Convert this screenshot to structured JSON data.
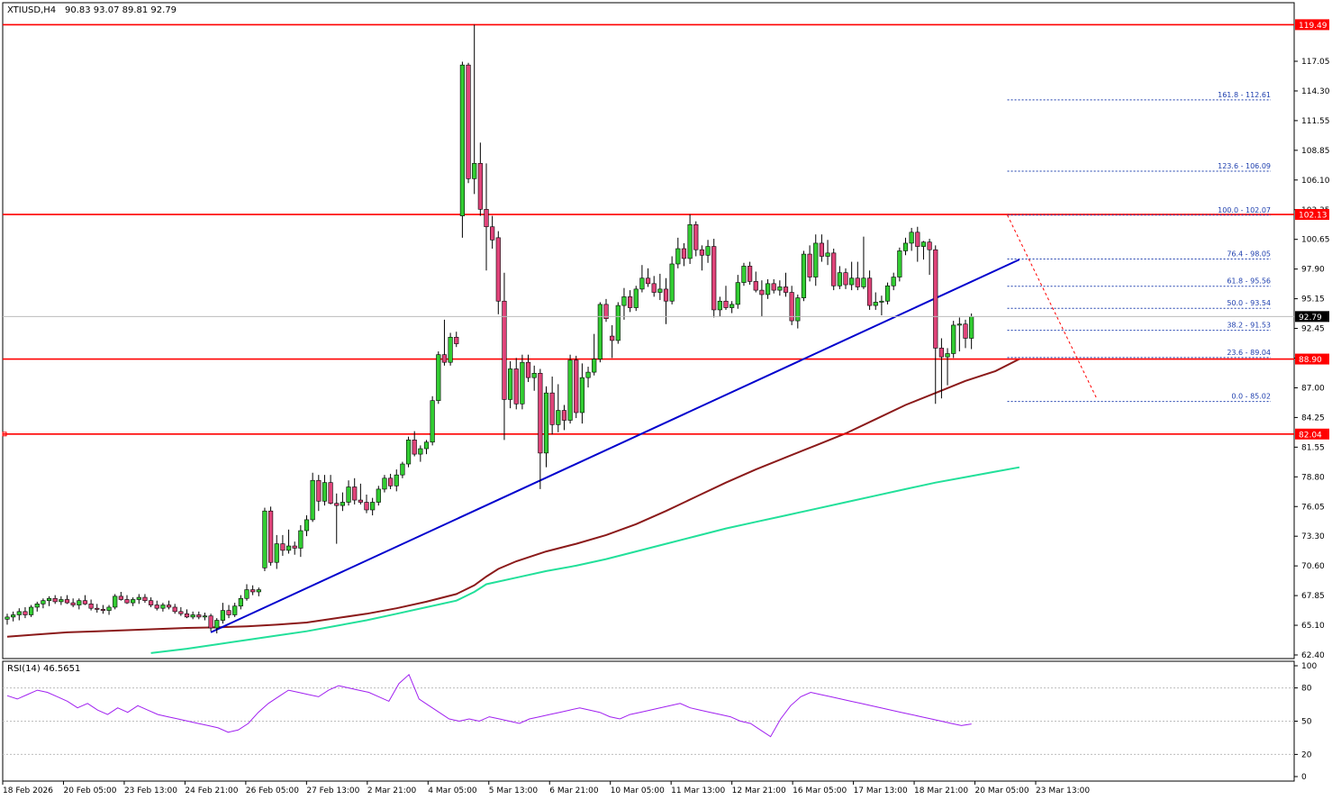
{
  "header": {
    "symbol": "XTIUSD,H4",
    "ohlc": "90.83 93.07 89.81 92.79"
  },
  "colors": {
    "bull": "#32cd32",
    "bear": "#e0447a",
    "level": "#ff0000",
    "trend": "#0000cd",
    "ma_slow": "#8b1a1a",
    "ma_fast": "#22e09a",
    "fib": "#1e3fae",
    "rsi": "#a020f0",
    "axis": "#000000",
    "current": "#000000"
  },
  "chart_data": {
    "type": "candlestick",
    "ylim": [
      61.5,
      121.5
    ],
    "y_ticks": [
      "117.05",
      "114.30",
      "111.55",
      "108.85",
      "106.10",
      "103.35",
      "100.65",
      "97.90",
      "95.15",
      "92.45",
      "89.70",
      "87.00",
      "84.25",
      "81.55",
      "78.80",
      "76.05",
      "73.30",
      "70.60",
      "67.85",
      "65.10",
      "62.40"
    ],
    "x_labels": [
      "18 Feb 2026",
      "20 Feb 05:00",
      "23 Feb 13:00",
      "24 Feb 21:00",
      "26 Feb 05:00",
      "27 Feb 13:00",
      "2 Mar 21:00",
      "4 Mar 05:00",
      "5 Mar 13:00",
      "6 Mar 21:00",
      "10 Mar 05:00",
      "11 Mar 13:00",
      "12 Mar 21:00",
      "16 Mar 05:00",
      "17 Mar 13:00",
      "18 Mar 21:00",
      "20 Mar 05:00",
      "23 Mar 13:00"
    ],
    "levels": [
      {
        "label": "119.49",
        "value": 119.49
      },
      {
        "label": "102.13",
        "value": 102.13
      },
      {
        "label": "88.90",
        "value": 88.9
      },
      {
        "label": "82.04",
        "value": 82.04
      }
    ],
    "current_price": {
      "label": "92.79",
      "value": 92.79
    },
    "fibonacci": [
      {
        "label": "161.8 - 112.61",
        "value": 112.61
      },
      {
        "label": "123.6 - 106.09",
        "value": 106.09
      },
      {
        "label": "100.0 - 102.07",
        "value": 102.07
      },
      {
        "label": "76.4 - 98.05",
        "value": 98.05
      },
      {
        "label": "61.8 - 95.56",
        "value": 95.56
      },
      {
        "label": "50.0 - 93.54",
        "value": 93.54
      },
      {
        "label": "38.2 - 91.53",
        "value": 91.53
      },
      {
        "label": "23.6 - 89.04",
        "value": 89.04
      },
      {
        "label": "0.0 - 85.02",
        "value": 85.02
      }
    ],
    "candles": [
      [
        65.1,
        65.6,
        64.6,
        65.3
      ],
      [
        65.3,
        65.8,
        64.9,
        65.5
      ],
      [
        65.5,
        66.1,
        65.0,
        65.8
      ],
      [
        65.8,
        66.2,
        65.2,
        65.5
      ],
      [
        65.5,
        66.4,
        65.3,
        66.2
      ],
      [
        66.2,
        66.7,
        65.8,
        66.5
      ],
      [
        66.5,
        67.0,
        66.1,
        66.8
      ],
      [
        66.8,
        67.2,
        66.3,
        67.0
      ],
      [
        67.0,
        67.3,
        66.5,
        66.7
      ],
      [
        66.7,
        67.2,
        66.4,
        66.9
      ],
      [
        66.9,
        67.3,
        66.5,
        66.6
      ],
      [
        66.6,
        67.0,
        66.2,
        66.4
      ],
      [
        66.4,
        67.0,
        66.0,
        66.8
      ],
      [
        66.8,
        67.3,
        66.4,
        66.5
      ],
      [
        66.5,
        66.9,
        65.9,
        66.1
      ],
      [
        66.1,
        66.5,
        65.7,
        66.0
      ],
      [
        66.0,
        66.4,
        65.6,
        65.9
      ],
      [
        65.9,
        66.4,
        65.5,
        66.2
      ],
      [
        66.2,
        67.4,
        66.0,
        67.2
      ],
      [
        67.2,
        67.6,
        66.8,
        66.9
      ],
      [
        66.9,
        67.3,
        66.5,
        66.6
      ],
      [
        66.6,
        67.1,
        66.3,
        66.9
      ],
      [
        66.9,
        67.4,
        66.5,
        67.1
      ],
      [
        67.1,
        67.4,
        66.6,
        66.8
      ],
      [
        66.8,
        67.1,
        66.2,
        66.4
      ],
      [
        66.4,
        66.8,
        65.9,
        66.1
      ],
      [
        66.1,
        66.6,
        65.8,
        66.4
      ],
      [
        66.4,
        66.8,
        66.0,
        66.2
      ],
      [
        66.2,
        66.5,
        65.6,
        65.8
      ],
      [
        65.8,
        66.2,
        65.4,
        65.6
      ],
      [
        65.6,
        66.0,
        65.2,
        65.3
      ],
      [
        65.3,
        65.8,
        65.1,
        65.5
      ],
      [
        65.5,
        65.8,
        65.1,
        65.3
      ],
      [
        65.3,
        65.7,
        65.0,
        65.4
      ],
      [
        65.4,
        65.6,
        64.0,
        64.3
      ],
      [
        64.3,
        65.2,
        63.8,
        65.0
      ],
      [
        65.0,
        66.6,
        64.7,
        65.9
      ],
      [
        65.9,
        66.4,
        65.2,
        65.5
      ],
      [
        65.5,
        66.6,
        65.3,
        66.3
      ],
      [
        66.3,
        67.3,
        66.0,
        67.0
      ],
      [
        67.0,
        68.3,
        66.8,
        67.8
      ],
      [
        67.8,
        68.2,
        67.3,
        67.6
      ],
      [
        67.6,
        68.0,
        67.2,
        67.8
      ],
      [
        69.8,
        75.3,
        69.5,
        75.0
      ],
      [
        75.0,
        75.4,
        70.0,
        70.3
      ],
      [
        70.3,
        72.8,
        69.7,
        72.0
      ],
      [
        72.0,
        72.8,
        70.9,
        71.4
      ],
      [
        71.4,
        73.3,
        71.1,
        71.8
      ],
      [
        71.8,
        72.2,
        71.0,
        71.6
      ],
      [
        71.6,
        73.7,
        70.8,
        73.2
      ],
      [
        73.2,
        74.6,
        72.7,
        74.2
      ],
      [
        74.2,
        78.5,
        74.0,
        77.8
      ],
      [
        77.8,
        78.3,
        75.0,
        75.9
      ],
      [
        75.9,
        78.3,
        75.5,
        77.6
      ],
      [
        77.6,
        78.3,
        75.6,
        75.7
      ],
      [
        75.7,
        76.6,
        72.0,
        75.5
      ],
      [
        75.5,
        76.7,
        75.0,
        75.8
      ],
      [
        75.8,
        77.8,
        75.5,
        77.2
      ],
      [
        77.2,
        78.0,
        75.6,
        76.0
      ],
      [
        76.0,
        77.5,
        75.6,
        75.8
      ],
      [
        75.8,
        76.5,
        74.8,
        75.1
      ],
      [
        75.1,
        76.2,
        74.6,
        75.8
      ],
      [
        75.8,
        77.3,
        75.5,
        77.0
      ],
      [
        77.0,
        78.3,
        76.7,
        78.0
      ],
      [
        78.0,
        78.4,
        77.0,
        77.3
      ],
      [
        77.3,
        78.8,
        76.8,
        78.3
      ],
      [
        78.3,
        79.5,
        78.0,
        79.3
      ],
      [
        79.3,
        81.8,
        79.0,
        81.5
      ],
      [
        81.5,
        82.3,
        80.0,
        80.2
      ],
      [
        80.2,
        81.0,
        79.5,
        80.7
      ],
      [
        80.7,
        81.5,
        80.2,
        81.3
      ],
      [
        81.3,
        85.5,
        81.0,
        85.1
      ],
      [
        85.1,
        89.6,
        84.8,
        89.3
      ],
      [
        89.3,
        92.5,
        88.3,
        88.6
      ],
      [
        88.6,
        91.3,
        88.3,
        90.9
      ],
      [
        90.9,
        91.4,
        90.0,
        90.3
      ],
      [
        102.0,
        116.1,
        100.0,
        115.8
      ],
      [
        115.8,
        116.0,
        105.0,
        105.4
      ],
      [
        105.4,
        119.49,
        104.0,
        106.8
      ],
      [
        106.8,
        108.7,
        102.0,
        102.6
      ],
      [
        102.6,
        106.8,
        97.0,
        101.0
      ],
      [
        101.0,
        102.0,
        99.0,
        99.8
      ],
      [
        100.0,
        100.6,
        93.0,
        94.2
      ],
      [
        94.2,
        96.8,
        81.5,
        85.2
      ],
      [
        85.2,
        88.7,
        84.4,
        88.0
      ],
      [
        88.0,
        89.0,
        84.3,
        84.8
      ],
      [
        84.8,
        89.3,
        84.3,
        88.6
      ],
      [
        88.6,
        89.3,
        86.8,
        87.2
      ],
      [
        87.2,
        88.3,
        86.0,
        87.6
      ],
      [
        87.6,
        88.0,
        77.0,
        80.3
      ],
      [
        80.3,
        86.4,
        79.0,
        85.8
      ],
      [
        85.8,
        87.3,
        82.0,
        82.9
      ],
      [
        82.9,
        86.6,
        82.2,
        84.2
      ],
      [
        84.2,
        84.7,
        82.4,
        83.3
      ],
      [
        83.3,
        89.3,
        83.0,
        88.8
      ],
      [
        88.8,
        89.2,
        83.5,
        84.0
      ],
      [
        84.0,
        88.5,
        83.0,
        87.2
      ],
      [
        87.2,
        88.2,
        86.3,
        87.7
      ],
      [
        87.7,
        91.2,
        87.4,
        88.9
      ],
      [
        88.9,
        94.1,
        88.6,
        93.9
      ],
      [
        93.9,
        94.4,
        92.3,
        92.6
      ],
      [
        91.0,
        92.0,
        89.0,
        90.6
      ],
      [
        90.6,
        94.1,
        90.3,
        93.8
      ],
      [
        93.8,
        95.4,
        92.5,
        94.6
      ],
      [
        94.6,
        95.2,
        93.2,
        93.6
      ],
      [
        93.6,
        95.6,
        93.3,
        95.3
      ],
      [
        95.3,
        97.5,
        95.0,
        96.3
      ],
      [
        96.3,
        97.2,
        95.5,
        95.8
      ],
      [
        95.8,
        96.5,
        94.6,
        95.0
      ],
      [
        95.0,
        96.7,
        94.3,
        95.3
      ],
      [
        95.3,
        96.3,
        92.1,
        94.2
      ],
      [
        94.2,
        98.3,
        93.9,
        97.6
      ],
      [
        97.6,
        100.0,
        97.2,
        99.0
      ],
      [
        99.0,
        99.5,
        97.4,
        98.1
      ],
      [
        98.1,
        102.13,
        97.6,
        101.2
      ],
      [
        101.2,
        101.5,
        98.3,
        98.9
      ],
      [
        98.9,
        99.3,
        97.0,
        98.4
      ],
      [
        98.4,
        99.8,
        97.7,
        99.2
      ],
      [
        99.2,
        99.9,
        92.7,
        93.4
      ],
      [
        93.4,
        94.6,
        92.8,
        94.2
      ],
      [
        94.2,
        95.6,
        93.4,
        93.6
      ],
      [
        93.6,
        94.2,
        93.1,
        93.9
      ],
      [
        93.9,
        96.6,
        93.5,
        95.9
      ],
      [
        95.9,
        97.7,
        95.6,
        97.4
      ],
      [
        97.4,
        97.8,
        95.7,
        96.0
      ],
      [
        96.0,
        96.9,
        95.0,
        95.2
      ],
      [
        95.2,
        96.1,
        92.8,
        94.8
      ],
      [
        94.8,
        96.2,
        94.4,
        95.8
      ],
      [
        95.8,
        96.2,
        94.9,
        95.2
      ],
      [
        95.2,
        96.1,
        94.7,
        95.5
      ],
      [
        95.5,
        96.8,
        94.6,
        95.0
      ],
      [
        95.0,
        95.6,
        92.0,
        92.4
      ],
      [
        92.4,
        94.8,
        91.7,
        94.5
      ],
      [
        94.5,
        98.8,
        94.2,
        98.5
      ],
      [
        98.5,
        99.3,
        96.0,
        96.4
      ],
      [
        96.4,
        100.3,
        95.6,
        99.5
      ],
      [
        99.5,
        100.3,
        97.8,
        98.3
      ],
      [
        98.3,
        99.8,
        97.5,
        98.6
      ],
      [
        98.6,
        99.0,
        95.2,
        95.6
      ],
      [
        95.6,
        97.4,
        95.3,
        96.8
      ],
      [
        96.8,
        97.2,
        95.3,
        95.7
      ],
      [
        95.7,
        97.8,
        95.2,
        96.3
      ],
      [
        96.3,
        97.8,
        95.2,
        95.5
      ],
      [
        95.5,
        100.1,
        95.3,
        96.3
      ],
      [
        96.3,
        97.0,
        93.4,
        93.8
      ],
      [
        93.8,
        95.0,
        93.4,
        94.1
      ],
      [
        94.1,
        94.7,
        92.9,
        94.2
      ],
      [
        94.2,
        95.9,
        93.9,
        95.6
      ],
      [
        95.6,
        96.8,
        95.2,
        96.4
      ],
      [
        96.4,
        99.1,
        96.0,
        98.8
      ],
      [
        98.8,
        100.0,
        98.4,
        99.5
      ],
      [
        99.5,
        100.9,
        98.8,
        100.5
      ],
      [
        100.5,
        101.0,
        97.8,
        99.2
      ],
      [
        99.2,
        99.7,
        98.0,
        99.6
      ],
      [
        99.6,
        99.9,
        96.6,
        98.9
      ],
      [
        98.9,
        99.3,
        84.8,
        89.9
      ],
      [
        89.9,
        90.8,
        85.3,
        89.1
      ],
      [
        89.1,
        89.9,
        86.5,
        89.4
      ],
      [
        89.4,
        92.4,
        89.0,
        92.0
      ],
      [
        92.0,
        92.7,
        89.6,
        92.1
      ],
      [
        92.1,
        92.5,
        89.9,
        90.8
      ],
      [
        90.8,
        93.07,
        89.81,
        92.79
      ]
    ],
    "ma_slow": [
      [
        0,
        63.5
      ],
      [
        5,
        63.7
      ],
      [
        10,
        63.9
      ],
      [
        15,
        64.0
      ],
      [
        20,
        64.1
      ],
      [
        25,
        64.2
      ],
      [
        30,
        64.3
      ],
      [
        35,
        64.35
      ],
      [
        40,
        64.45
      ],
      [
        45,
        64.6
      ],
      [
        50,
        64.8
      ],
      [
        55,
        65.2
      ],
      [
        60,
        65.6
      ],
      [
        65,
        66.1
      ],
      [
        70,
        66.7
      ],
      [
        75,
        67.4
      ],
      [
        78,
        68.2
      ],
      [
        80,
        69.0
      ],
      [
        82,
        69.7
      ],
      [
        85,
        70.4
      ],
      [
        90,
        71.3
      ],
      [
        95,
        72.0
      ],
      [
        100,
        72.8
      ],
      [
        105,
        73.8
      ],
      [
        110,
        75.0
      ],
      [
        115,
        76.3
      ],
      [
        120,
        77.6
      ],
      [
        125,
        78.8
      ],
      [
        130,
        79.9
      ],
      [
        135,
        81.0
      ],
      [
        140,
        82.1
      ],
      [
        145,
        83.4
      ],
      [
        150,
        84.7
      ],
      [
        155,
        85.8
      ],
      [
        160,
        86.9
      ],
      [
        165,
        87.8
      ],
      [
        169,
        88.9
      ]
    ],
    "ma_fast": [
      [
        24,
        62.0
      ],
      [
        30,
        62.4
      ],
      [
        35,
        62.8
      ],
      [
        40,
        63.2
      ],
      [
        45,
        63.6
      ],
      [
        50,
        64.0
      ],
      [
        55,
        64.5
      ],
      [
        60,
        65.0
      ],
      [
        65,
        65.6
      ],
      [
        70,
        66.2
      ],
      [
        75,
        66.8
      ],
      [
        78,
        67.6
      ],
      [
        80,
        68.3
      ],
      [
        85,
        68.9
      ],
      [
        90,
        69.5
      ],
      [
        95,
        70.0
      ],
      [
        100,
        70.6
      ],
      [
        105,
        71.3
      ],
      [
        110,
        72.0
      ],
      [
        115,
        72.7
      ],
      [
        120,
        73.4
      ],
      [
        125,
        74.0
      ],
      [
        130,
        74.6
      ],
      [
        135,
        75.2
      ],
      [
        140,
        75.8
      ],
      [
        145,
        76.4
      ],
      [
        150,
        77.0
      ],
      [
        155,
        77.6
      ],
      [
        160,
        78.1
      ],
      [
        165,
        78.6
      ],
      [
        169,
        79.0
      ]
    ],
    "trendline": [
      [
        34,
        63.9
      ],
      [
        169,
        98.0
      ]
    ],
    "fib_projection": [
      [
        167,
        102.07
      ],
      [
        182,
        85.2
      ]
    ],
    "rsi": {
      "label": "RSI(14) 46.5651",
      "ylim": [
        0,
        100
      ],
      "ticks": [
        "100",
        "80",
        "50",
        "20",
        "0"
      ],
      "levels": [
        80,
        50,
        20
      ],
      "values": [
        73,
        70,
        74,
        78,
        76,
        72,
        68,
        62,
        66,
        60,
        56,
        62,
        58,
        64,
        60,
        56,
        54,
        52,
        50,
        48,
        46,
        44,
        40,
        42,
        48,
        58,
        66,
        72,
        78,
        76,
        74,
        72,
        78,
        82,
        80,
        78,
        76,
        72,
        68,
        84,
        92,
        70,
        64,
        58,
        52,
        50,
        52,
        50,
        54,
        52,
        50,
        48,
        52,
        54,
        56,
        58,
        60,
        62,
        60,
        58,
        54,
        52,
        56,
        58,
        60,
        62,
        64,
        66,
        62,
        60,
        58,
        56,
        54,
        50,
        48,
        42,
        36,
        52,
        64,
        72,
        76,
        74,
        72,
        70,
        68,
        66,
        64,
        62,
        60,
        58,
        56,
        54,
        52,
        50,
        48,
        46,
        47.5
      ]
    }
  }
}
